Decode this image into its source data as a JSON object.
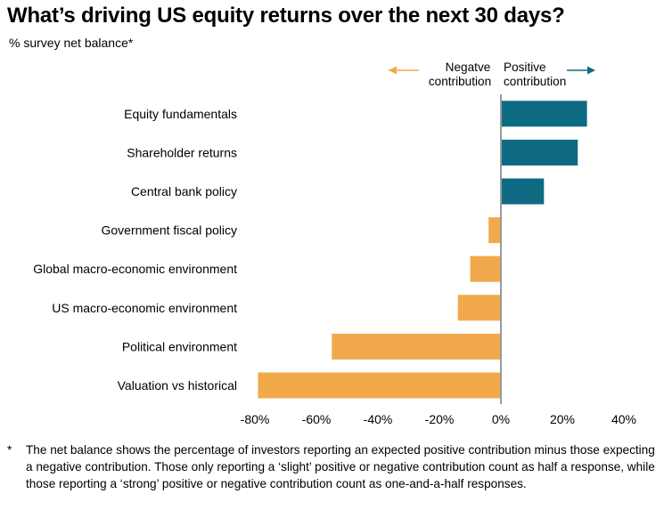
{
  "title": "What’s driving US equity returns over the next 30 days?",
  "subtitle": "% survey net balance*",
  "legend": {
    "negative_label_line1": "Negatve",
    "negative_label_line2": "contribution",
    "positive_label_line1": "Positive",
    "positive_label_line2": "contribution"
  },
  "footnote": {
    "marker": "*",
    "text": "The net balance shows the percentage of investors reporting an expected positive contribution minus those expecting a negative contribution. Those only reporting a ‘slight’ positive or negative contribution count as half a response, while those reporting a ‘strong’ positive or negative contribution count as one-and-a-half responses."
  },
  "colors": {
    "positive": "#0e6a82",
    "negative": "#f2a94c",
    "axis": "#9a9a9a"
  },
  "chart_data": {
    "type": "bar",
    "orientation": "horizontal",
    "categories": [
      "Equity fundamentals",
      "Shareholder returns",
      "Central bank policy",
      "Government fiscal policy",
      "Global macro-economic environment",
      "US macro-economic environment",
      "Political environment",
      "Valuation vs historical"
    ],
    "values": [
      28,
      25,
      14,
      -4,
      -10,
      -14,
      -55,
      -79
    ],
    "xlim": [
      -80,
      40
    ],
    "xticks": [
      -80,
      -60,
      -40,
      -20,
      0,
      20,
      40
    ],
    "xtick_labels": [
      "-80%",
      "-60%",
      "-40%",
      "-20%",
      "0%",
      "20%",
      "40%"
    ],
    "grid": false
  }
}
